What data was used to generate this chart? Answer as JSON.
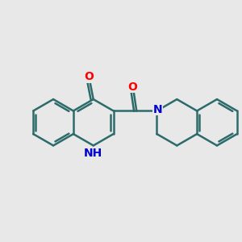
{
  "bg_color": "#e8e8e8",
  "bond_color": "#2d6b6b",
  "bond_width": 1.8,
  "dbo": 0.09,
  "atom_colors": {
    "O": "#ff0000",
    "N": "#0000cc"
  },
  "font_size": 10,
  "figsize": [
    3.0,
    3.0
  ],
  "dpi": 100,
  "xlim": [
    0.0,
    8.5
  ],
  "ylim": [
    1.8,
    7.2
  ]
}
